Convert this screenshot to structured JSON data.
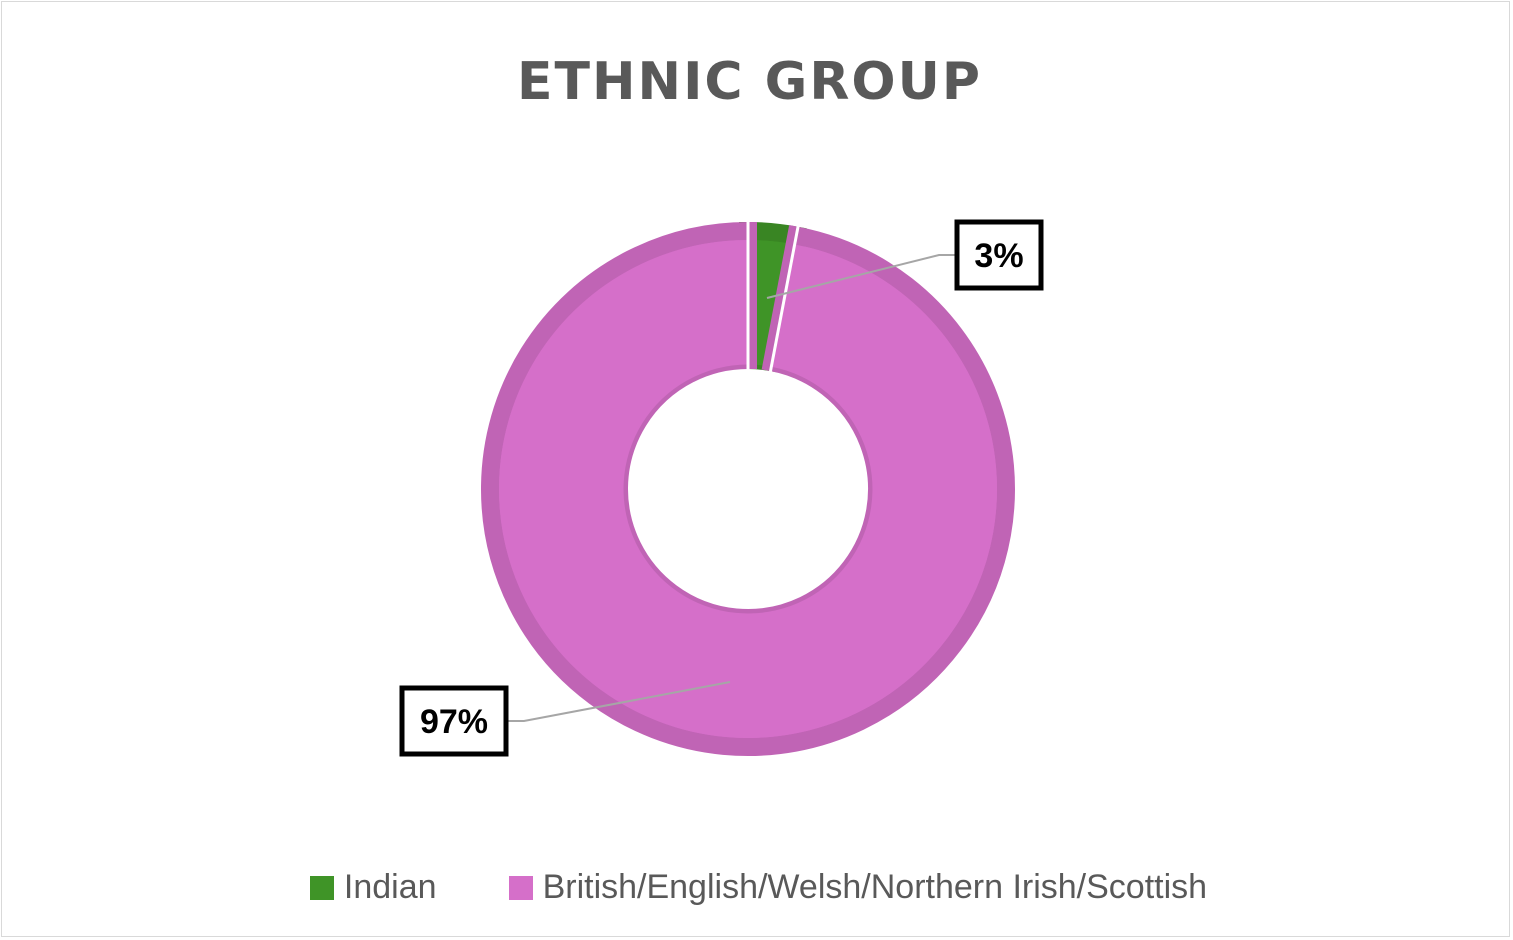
{
  "chart_data": {
    "type": "pie",
    "subtype": "donut",
    "title": "ETHNIC GROUP",
    "categories": [
      "Indian",
      "British/English/Welsh/Northern Irish/Scottish"
    ],
    "values": [
      3,
      97
    ],
    "unit": "%",
    "data_labels": [
      "3%",
      "97%"
    ],
    "colors": [
      "#3f9427",
      "#d56fc9"
    ],
    "legend_position": "bottom"
  }
}
